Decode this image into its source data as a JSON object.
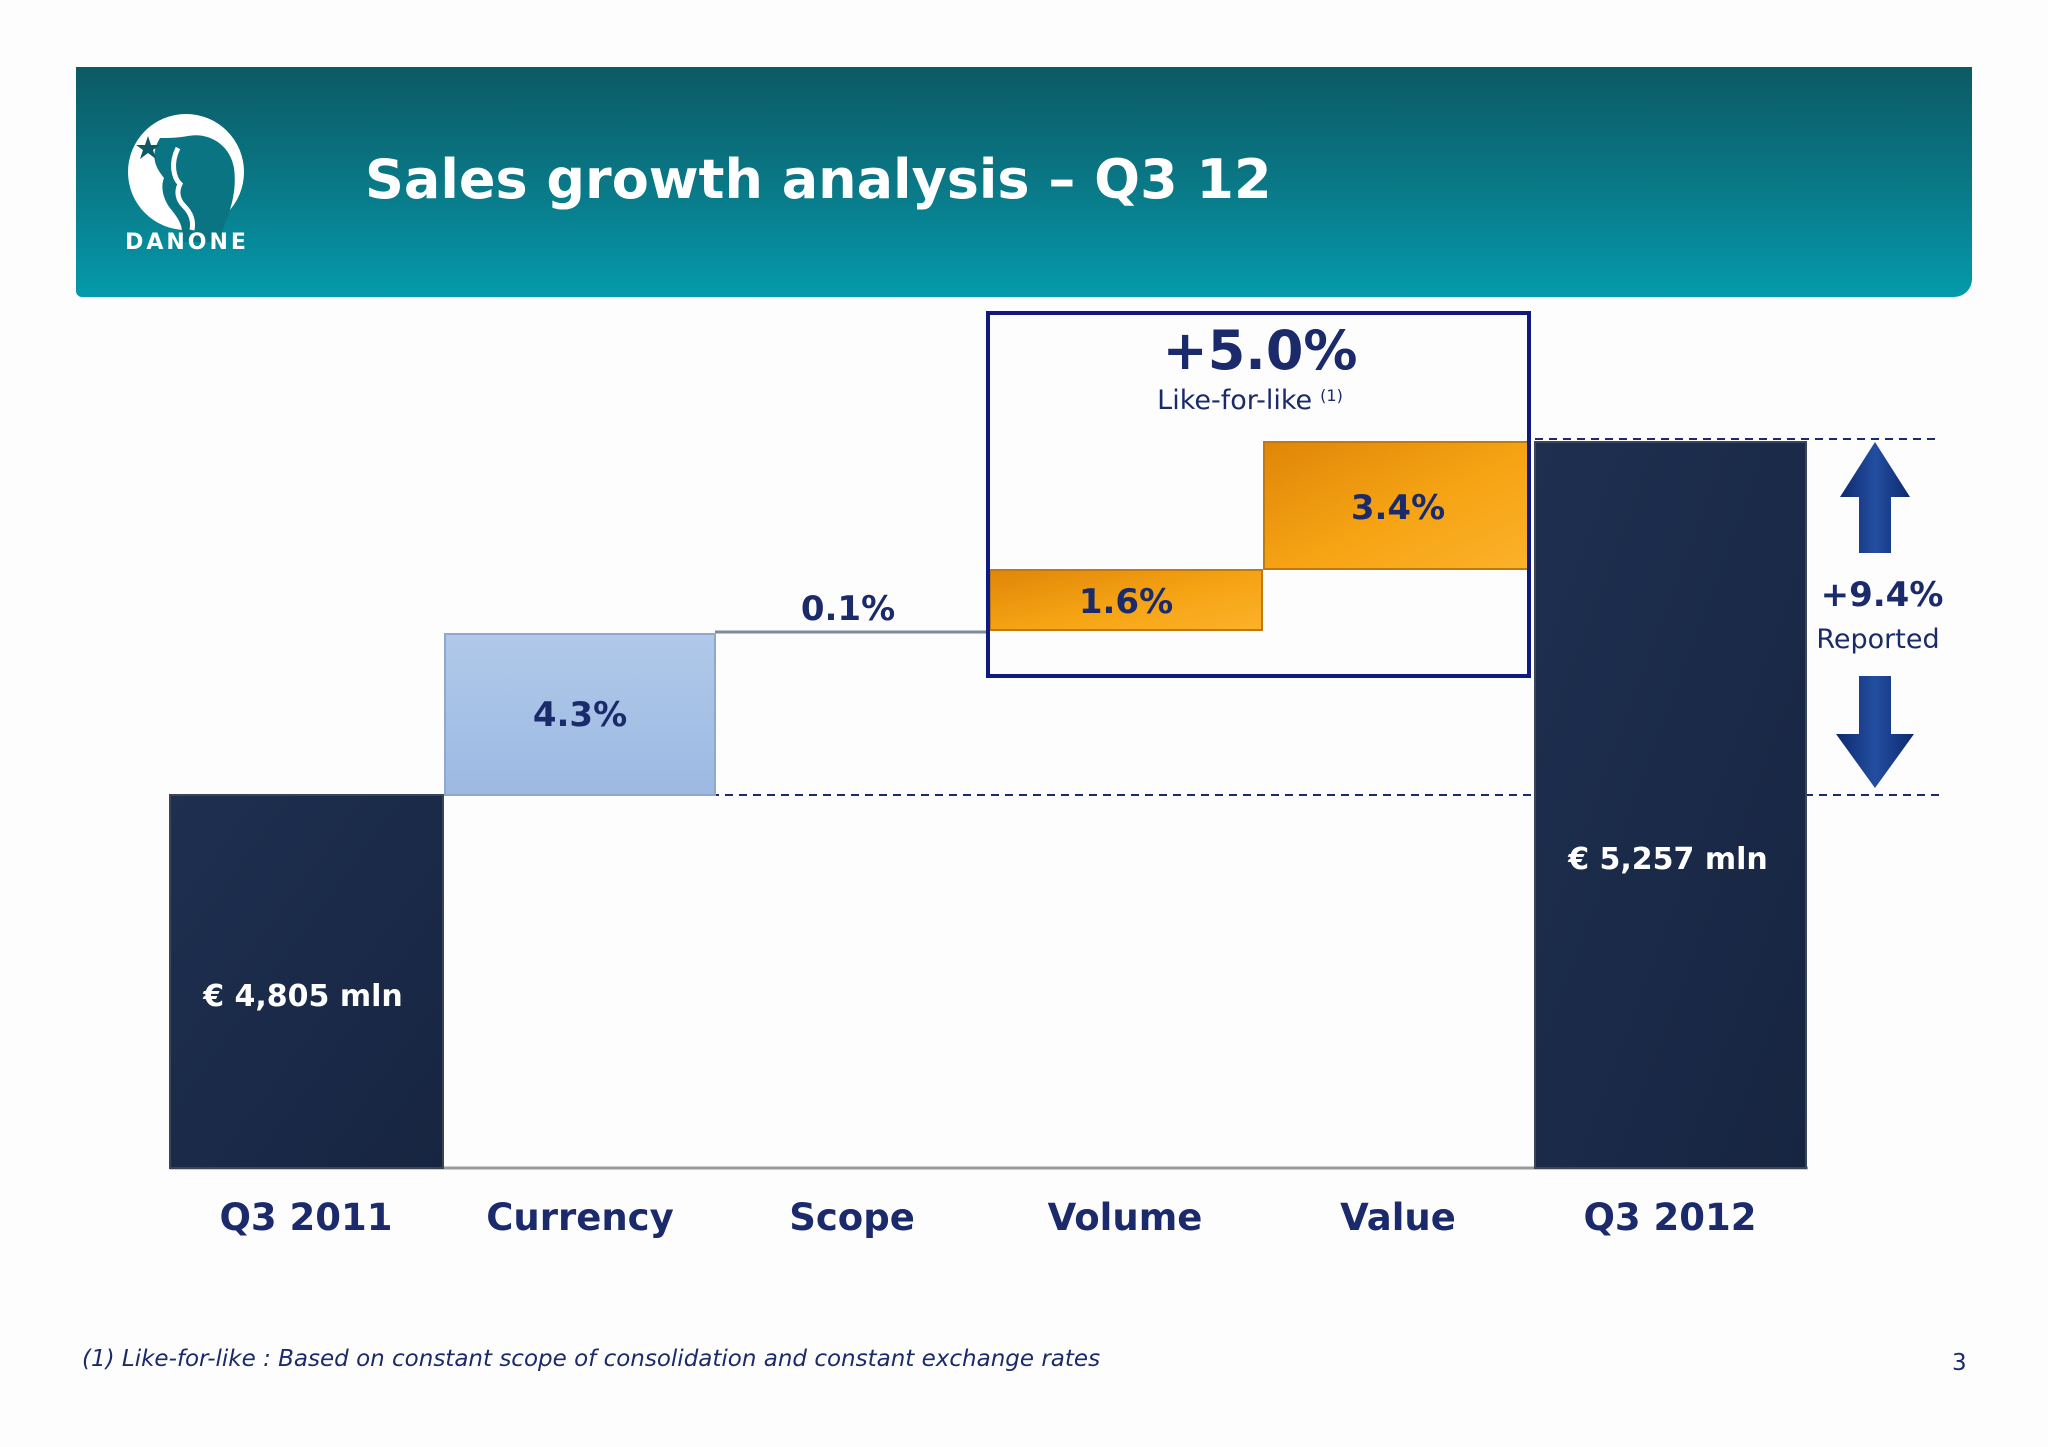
{
  "slide": {
    "title": "Sales growth analysis – Q3 12",
    "logo_text": "DANONE",
    "footnote": "(1) Like-for-like : Based on constant scope of consolidation and constant exchange rates",
    "page_number": "3"
  },
  "colors": {
    "header_dark": "#0b5a64",
    "header_light": "#049aab",
    "total_bar": "#1a2a48",
    "currency_bar": "#a7c2e6",
    "lfl_bar": "#f29a0e",
    "text_navy": "#1a2a6a",
    "box_border": "#0f1a80"
  },
  "chart_data": {
    "type": "bar",
    "subtype": "waterfall",
    "categories": [
      "Q3 2011",
      "Currency",
      "Scope",
      "Volume",
      "Value",
      "Q3 2012"
    ],
    "values": [
      4805,
      4.3,
      0.1,
      1.6,
      3.4,
      5257
    ],
    "value_types": [
      "total",
      "pct_change",
      "pct_change",
      "pct_change",
      "pct_change",
      "total"
    ],
    "data_labels": [
      "€ 4,805 mln",
      "4.3%",
      "0.1%",
      "1.6%",
      "3.4%",
      "€ 5,257 mln"
    ],
    "highlight": {
      "categories": [
        "Volume",
        "Value"
      ],
      "value_label": "+5.0%",
      "caption": "Like-for-like",
      "footnote_marker": "(1)"
    },
    "total_change": {
      "value_label": "+9.4%",
      "caption": "Reported"
    }
  }
}
